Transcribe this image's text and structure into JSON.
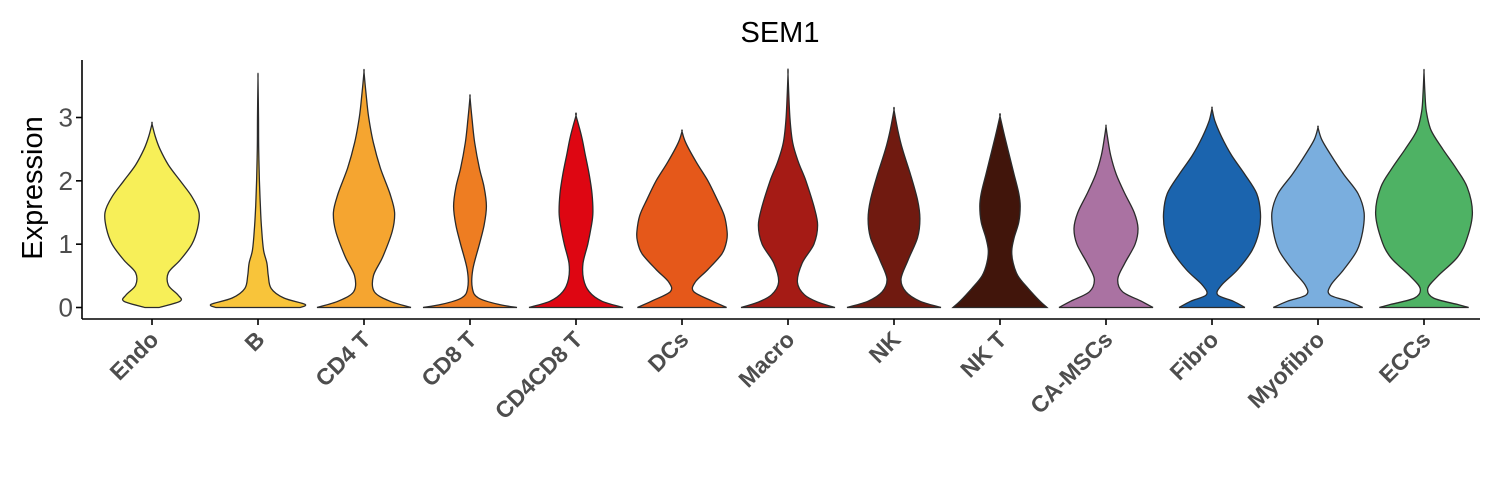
{
  "chart_data": {
    "type": "violin",
    "title": "SEM1",
    "xlabel": "",
    "ylabel": "Expression",
    "ylim": [
      -0.15,
      3.85
    ],
    "yticks": [
      "0",
      "1",
      "2",
      "3"
    ],
    "grid": false,
    "legend": "none",
    "categories": [
      "Endo",
      "B",
      "CD4 T",
      "CD8 T",
      "CD4CD8 T",
      "DCs",
      "Macro",
      "NK",
      "NK T",
      "CA-MSCs",
      "Fibro",
      "Myofibro",
      "ECCs"
    ],
    "series": [
      {
        "category": "Endo",
        "color": "#F7EF58",
        "max": 2.9,
        "profile": [
          [
            0,
            0.15
          ],
          [
            0.1,
            0.6
          ],
          [
            0.2,
            0.55
          ],
          [
            0.35,
            0.35
          ],
          [
            0.55,
            0.35
          ],
          [
            0.75,
            0.6
          ],
          [
            1.0,
            0.85
          ],
          [
            1.25,
            0.97
          ],
          [
            1.5,
            1.0
          ],
          [
            1.75,
            0.85
          ],
          [
            2.0,
            0.6
          ],
          [
            2.25,
            0.35
          ],
          [
            2.5,
            0.17
          ],
          [
            2.7,
            0.07
          ],
          [
            2.9,
            0
          ]
        ]
      },
      {
        "category": "B",
        "color": "#F8C43A",
        "max": 3.62,
        "profile": [
          [
            0,
            0.9
          ],
          [
            0.05,
            1.0
          ],
          [
            0.15,
            0.55
          ],
          [
            0.3,
            0.28
          ],
          [
            0.5,
            0.22
          ],
          [
            0.7,
            0.19
          ],
          [
            0.9,
            0.12
          ],
          [
            1.2,
            0.08
          ],
          [
            1.6,
            0.05
          ],
          [
            2.0,
            0.03
          ],
          [
            2.5,
            0.015
          ],
          [
            3.0,
            0.01
          ],
          [
            3.62,
            0
          ]
        ]
      },
      {
        "category": "CD4 T",
        "color": "#F5A530",
        "max": 3.72,
        "profile": [
          [
            0,
            1.0
          ],
          [
            0.1,
            0.55
          ],
          [
            0.25,
            0.22
          ],
          [
            0.5,
            0.2
          ],
          [
            0.8,
            0.4
          ],
          [
            1.2,
            0.6
          ],
          [
            1.5,
            0.65
          ],
          [
            1.8,
            0.55
          ],
          [
            2.2,
            0.35
          ],
          [
            2.6,
            0.2
          ],
          [
            3.0,
            0.1
          ],
          [
            3.4,
            0.04
          ],
          [
            3.72,
            0
          ]
        ]
      },
      {
        "category": "CD8 T",
        "color": "#EE7D22",
        "max": 3.32,
        "profile": [
          [
            0,
            1.0
          ],
          [
            0.05,
            0.6
          ],
          [
            0.15,
            0.18
          ],
          [
            0.3,
            0.05
          ],
          [
            0.6,
            0.06
          ],
          [
            1.0,
            0.2
          ],
          [
            1.3,
            0.3
          ],
          [
            1.6,
            0.35
          ],
          [
            1.9,
            0.3
          ],
          [
            2.2,
            0.2
          ],
          [
            2.6,
            0.1
          ],
          [
            3.0,
            0.04
          ],
          [
            3.32,
            0
          ]
        ]
      },
      {
        "category": "CD4CD8 T",
        "color": "#DE0612",
        "max": 3.03,
        "profile": [
          [
            0,
            1.0
          ],
          [
            0.1,
            0.55
          ],
          [
            0.25,
            0.28
          ],
          [
            0.45,
            0.16
          ],
          [
            0.7,
            0.15
          ],
          [
            1.0,
            0.25
          ],
          [
            1.3,
            0.33
          ],
          [
            1.5,
            0.36
          ],
          [
            1.8,
            0.34
          ],
          [
            2.1,
            0.28
          ],
          [
            2.4,
            0.2
          ],
          [
            2.7,
            0.12
          ],
          [
            3.03,
            0
          ]
        ]
      },
      {
        "category": "DCs",
        "color": "#E5581A",
        "max": 2.78,
        "profile": [
          [
            0,
            0.95
          ],
          [
            0.1,
            0.65
          ],
          [
            0.25,
            0.25
          ],
          [
            0.4,
            0.28
          ],
          [
            0.6,
            0.55
          ],
          [
            0.85,
            0.85
          ],
          [
            1.05,
            0.95
          ],
          [
            1.2,
            0.96
          ],
          [
            1.45,
            0.9
          ],
          [
            1.7,
            0.75
          ],
          [
            2.0,
            0.55
          ],
          [
            2.3,
            0.3
          ],
          [
            2.6,
            0.08
          ],
          [
            2.78,
            0
          ]
        ]
      },
      {
        "category": "Macro",
        "color": "#A51B15",
        "max": 3.68,
        "profile": [
          [
            0,
            1.0
          ],
          [
            0.08,
            0.65
          ],
          [
            0.2,
            0.35
          ],
          [
            0.4,
            0.2
          ],
          [
            0.7,
            0.3
          ],
          [
            1.0,
            0.55
          ],
          [
            1.3,
            0.63
          ],
          [
            1.6,
            0.55
          ],
          [
            2.0,
            0.38
          ],
          [
            2.3,
            0.22
          ],
          [
            2.6,
            0.1
          ],
          [
            3.0,
            0.04
          ],
          [
            3.68,
            0
          ]
        ]
      },
      {
        "category": "NK",
        "color": "#701A10",
        "max": 3.12,
        "profile": [
          [
            0,
            1.0
          ],
          [
            0.1,
            0.55
          ],
          [
            0.25,
            0.25
          ],
          [
            0.45,
            0.15
          ],
          [
            0.75,
            0.3
          ],
          [
            1.1,
            0.5
          ],
          [
            1.4,
            0.55
          ],
          [
            1.7,
            0.5
          ],
          [
            2.1,
            0.35
          ],
          [
            2.5,
            0.18
          ],
          [
            2.8,
            0.08
          ],
          [
            3.12,
            0
          ]
        ]
      },
      {
        "category": "NK T",
        "color": "#41150B",
        "max": 3.02,
        "profile": [
          [
            0,
            1.0
          ],
          [
            0.1,
            0.85
          ],
          [
            0.3,
            0.6
          ],
          [
            0.5,
            0.38
          ],
          [
            0.7,
            0.28
          ],
          [
            0.9,
            0.25
          ],
          [
            1.1,
            0.3
          ],
          [
            1.35,
            0.4
          ],
          [
            1.6,
            0.43
          ],
          [
            1.8,
            0.4
          ],
          [
            2.1,
            0.3
          ],
          [
            2.4,
            0.2
          ],
          [
            2.7,
            0.1
          ],
          [
            3.02,
            0
          ]
        ]
      },
      {
        "category": "CA-MSCs",
        "color": "#AA72A2",
        "max": 2.86,
        "profile": [
          [
            0,
            1.0
          ],
          [
            0.1,
            0.75
          ],
          [
            0.25,
            0.35
          ],
          [
            0.45,
            0.25
          ],
          [
            0.7,
            0.4
          ],
          [
            1.0,
            0.62
          ],
          [
            1.25,
            0.68
          ],
          [
            1.5,
            0.6
          ],
          [
            1.8,
            0.4
          ],
          [
            2.1,
            0.22
          ],
          [
            2.4,
            0.1
          ],
          [
            2.7,
            0.03
          ],
          [
            2.86,
            0
          ]
        ]
      },
      {
        "category": "Fibro",
        "color": "#1B64AE",
        "max": 3.14,
        "profile": [
          [
            0,
            0.7
          ],
          [
            0.1,
            0.45
          ],
          [
            0.2,
            0.12
          ],
          [
            0.35,
            0.2
          ],
          [
            0.6,
            0.55
          ],
          [
            0.9,
            0.85
          ],
          [
            1.2,
            1.0
          ],
          [
            1.5,
            1.03
          ],
          [
            1.8,
            0.95
          ],
          [
            2.1,
            0.7
          ],
          [
            2.4,
            0.42
          ],
          [
            2.7,
            0.2
          ],
          [
            2.95,
            0.06
          ],
          [
            3.14,
            0
          ]
        ]
      },
      {
        "category": "Myofibro",
        "color": "#7AAEDE",
        "max": 2.84,
        "profile": [
          [
            0,
            0.95
          ],
          [
            0.1,
            0.65
          ],
          [
            0.2,
            0.25
          ],
          [
            0.35,
            0.27
          ],
          [
            0.6,
            0.55
          ],
          [
            0.9,
            0.83
          ],
          [
            1.2,
            0.95
          ],
          [
            1.5,
            0.98
          ],
          [
            1.8,
            0.85
          ],
          [
            2.1,
            0.55
          ],
          [
            2.4,
            0.28
          ],
          [
            2.65,
            0.08
          ],
          [
            2.84,
            0
          ]
        ]
      },
      {
        "category": "ECCs",
        "color": "#4EB264",
        "max": 3.72,
        "profile": [
          [
            0,
            0.95
          ],
          [
            0.05,
            0.7
          ],
          [
            0.15,
            0.2
          ],
          [
            0.3,
            0.08
          ],
          [
            0.5,
            0.3
          ],
          [
            0.8,
            0.72
          ],
          [
            1.1,
            0.92
          ],
          [
            1.5,
            1.03
          ],
          [
            1.9,
            0.92
          ],
          [
            2.2,
            0.68
          ],
          [
            2.5,
            0.4
          ],
          [
            2.8,
            0.15
          ],
          [
            3.1,
            0.05
          ],
          [
            3.4,
            0.02
          ],
          [
            3.72,
            0
          ]
        ]
      }
    ]
  }
}
